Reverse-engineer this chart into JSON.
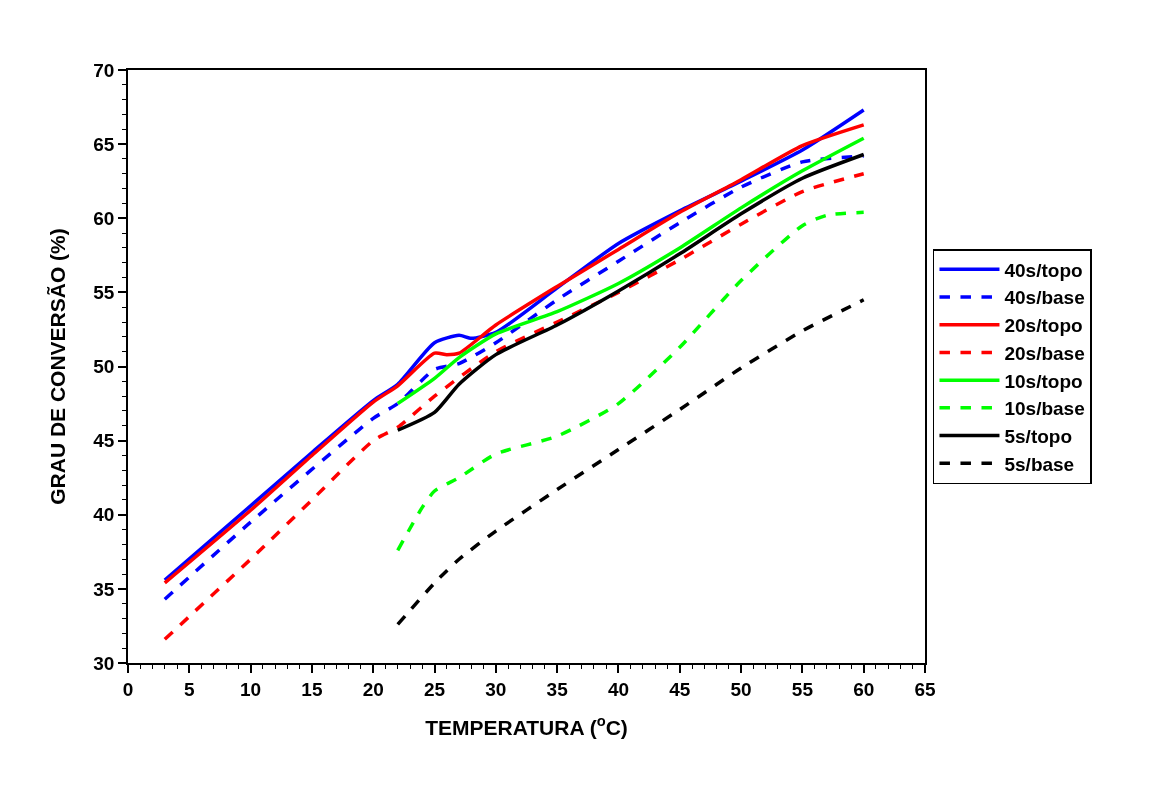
{
  "chart_data": {
    "type": "line",
    "xlabel": "TEMPERATURA ($^{o}$C)",
    "ylabel": "GRAU DE CONVERSÃO (%)",
    "xlim": [
      0,
      65
    ],
    "xticks": [
      0,
      5,
      10,
      15,
      20,
      25,
      30,
      35,
      40,
      45,
      50,
      55,
      60,
      65
    ],
    "ylim": [
      30,
      70
    ],
    "yticks": [
      30,
      35,
      40,
      45,
      50,
      55,
      60,
      65,
      70
    ],
    "grid": false,
    "legend": "right",
    "marker": "none",
    "series": [
      {
        "name": "40s/topo",
        "color": "#0000ff",
        "line_style": "solid",
        "x": [
          3,
          10,
          15,
          20,
          22,
          25,
          27,
          28,
          30,
          35,
          40,
          45,
          50,
          55,
          60
        ],
        "values": [
          35.6,
          40.6,
          44.2,
          47.7,
          48.8,
          51.6,
          52.1,
          51.9,
          52.3,
          55.3,
          58.3,
          60.5,
          62.5,
          64.6,
          67.3
        ]
      },
      {
        "name": "40s/base",
        "color": "#0000ff",
        "line_style": "dashed",
        "x": [
          3,
          10,
          20,
          22,
          25,
          27,
          30,
          35,
          40,
          45,
          50,
          55,
          60
        ],
        "values": [
          34.3,
          39.5,
          46.5,
          47.5,
          49.8,
          50.2,
          51.6,
          54.5,
          57.1,
          59.7,
          62.1,
          63.8,
          64.2
        ]
      },
      {
        "name": "20s/topo",
        "color": "#ff0000",
        "line_style": "solid",
        "x": [
          3,
          10,
          15,
          20,
          22,
          25,
          26,
          27,
          30,
          35,
          40,
          45,
          50,
          55,
          60
        ],
        "values": [
          35.4,
          40.3,
          44,
          47.6,
          48.7,
          50.9,
          50.8,
          50.9,
          52.8,
          55.4,
          57.9,
          60.4,
          62.6,
          64.9,
          66.3
        ]
      },
      {
        "name": "20s/base",
        "color": "#ff0000",
        "line_style": "dashed",
        "x": [
          3,
          10,
          15,
          20,
          22,
          25,
          30,
          35,
          40,
          45,
          50,
          55,
          60
        ],
        "values": [
          31.6,
          37,
          41,
          45,
          45.9,
          48,
          51,
          53,
          55,
          57.2,
          59.6,
          61.8,
          63
        ]
      },
      {
        "name": "10s/topo",
        "color": "#00ff00",
        "line_style": "solid",
        "x": [
          22,
          25,
          27,
          30,
          35,
          40,
          45,
          50,
          55,
          60
        ],
        "values": [
          47.5,
          49.2,
          50.6,
          52.2,
          53.7,
          55.6,
          58,
          60.7,
          63.2,
          65.4
        ]
      },
      {
        "name": "10s/base",
        "color": "#00ff00",
        "line_style": "dashed",
        "x": [
          22,
          24,
          25,
          27,
          30,
          35,
          40,
          45,
          50,
          55,
          57,
          60
        ],
        "values": [
          37.6,
          40.5,
          41.6,
          42.5,
          44.1,
          45.3,
          47.5,
          51.3,
          55.8,
          59.5,
          60.2,
          60.4
        ]
      },
      {
        "name": "5s/topo",
        "color": "#000000",
        "line_style": "solid",
        "x": [
          22,
          25,
          27,
          30,
          35,
          40,
          45,
          50,
          55,
          60
        ],
        "values": [
          45.7,
          46.9,
          48.8,
          50.8,
          52.8,
          55.1,
          57.6,
          60.3,
          62.7,
          64.3
        ]
      },
      {
        "name": "5s/base",
        "color": "#000000",
        "line_style": "dashed",
        "x": [
          22,
          25,
          27,
          30,
          35,
          40,
          45,
          50,
          55,
          60
        ],
        "values": [
          32.6,
          35.4,
          37,
          38.9,
          41.7,
          44.4,
          47.1,
          49.9,
          52.4,
          54.5
        ]
      }
    ]
  }
}
